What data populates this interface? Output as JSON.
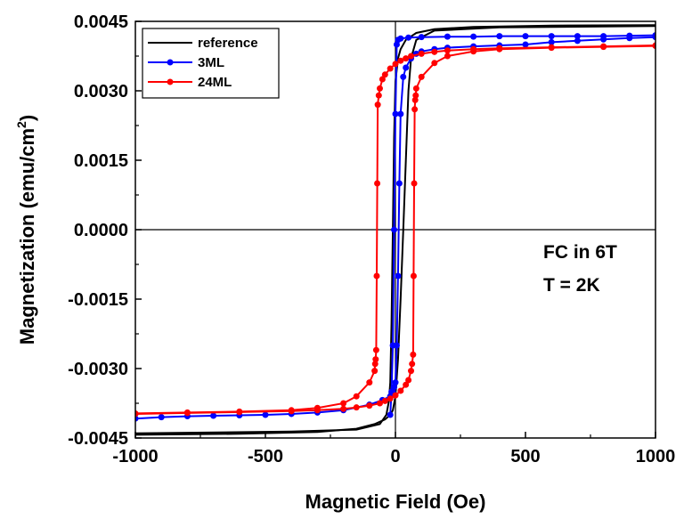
{
  "chart_data": {
    "type": "line",
    "xlabel": "Magnetic Field (Oe)",
    "ylabel_main": "Magnetization (emu/cm",
    "ylabel_sup": "2",
    "ylabel_end": ")",
    "xlim": [
      -1000,
      1000
    ],
    "ylim": [
      -0.0045,
      0.0045
    ],
    "xticks": [
      -1000,
      -500,
      0,
      500,
      1000
    ],
    "xtick_labels": [
      "-1000",
      "-500",
      "0",
      "500",
      "1000"
    ],
    "yticks": [
      -0.0045,
      -0.003,
      -0.0015,
      0.0,
      0.0015,
      0.003,
      0.0045
    ],
    "ytick_labels": [
      "-0.0045",
      "-0.0030",
      "-0.0015",
      "0.0000",
      "0.0015",
      "0.0030",
      "0.0045"
    ],
    "legend_position": "top-left",
    "annotations": [
      "FC in 6T",
      "T = 2K"
    ],
    "series": [
      {
        "name": "reference",
        "color": "#000000",
        "marker": "none",
        "upper_branch": {
          "x": [
            1000,
            600,
            300,
            150,
            80,
            40,
            20,
            10,
            0,
            -5,
            -10,
            -15,
            -20,
            -25,
            -35,
            -60,
            -150,
            -400,
            -1000
          ],
          "y": [
            0.00442,
            0.00441,
            0.00438,
            0.00433,
            0.00425,
            0.0041,
            0.0039,
            0.0037,
            0.0032,
            0.002,
            0.0,
            -0.002,
            -0.0033,
            -0.0037,
            -0.004,
            -0.0042,
            -0.00432,
            -0.00436,
            -0.0044
          ]
        },
        "lower_branch": {
          "x": [
            -1000,
            -600,
            -300,
            -150,
            -80,
            -40,
            -20,
            -10,
            0,
            10,
            20,
            30,
            40,
            50,
            60,
            80,
            150,
            400,
            1000
          ],
          "y": [
            -0.00443,
            -0.00441,
            -0.00437,
            -0.0043,
            -0.0042,
            -0.0041,
            -0.004,
            -0.0039,
            -0.0036,
            -0.0028,
            -0.0015,
            0.0,
            0.0015,
            0.003,
            0.0037,
            0.0041,
            0.0043,
            0.00437,
            0.0044
          ]
        }
      },
      {
        "name": "3ML",
        "color": "#0000ff",
        "marker": "circle",
        "upper_branch": {
          "x": [
            1000,
            900,
            800,
            700,
            600,
            500,
            400,
            300,
            200,
            100,
            50,
            20,
            10,
            5,
            0,
            -5,
            -10,
            -15,
            -20
          ],
          "y": [
            0.0042,
            0.00419,
            0.00418,
            0.00418,
            0.00418,
            0.00418,
            0.00418,
            0.00417,
            0.00417,
            0.00416,
            0.00415,
            0.00413,
            0.0041,
            0.004,
            0.0025,
            0.0,
            -0.0025,
            -0.0035,
            -0.004
          ]
        },
        "lower_branch": {
          "x": [
            -1000,
            -900,
            -800,
            -700,
            -600,
            -500,
            -400,
            -300,
            -200,
            -100,
            -50,
            -20,
            -10,
            -5,
            0,
            5,
            10,
            15,
            20,
            30,
            40,
            60,
            80,
            100,
            150,
            200,
            300,
            400,
            500,
            600,
            700,
            800,
            900,
            1000
          ],
          "y": [
            -0.00408,
            -0.00405,
            -0.00403,
            -0.00402,
            -0.00401,
            -0.004,
            -0.00398,
            -0.00395,
            -0.0039,
            -0.00378,
            -0.00368,
            -0.0036,
            -0.0035,
            -0.0034,
            -0.0033,
            -0.0025,
            -0.001,
            0.001,
            0.0025,
            0.0033,
            0.0035,
            0.0037,
            0.0038,
            0.00385,
            0.0039,
            0.00393,
            0.00396,
            0.00398,
            0.004,
            0.00405,
            0.00408,
            0.00411,
            0.00414,
            0.00416
          ]
        }
      },
      {
        "name": "24ML",
        "color": "#ff0000",
        "marker": "circle",
        "upper_branch": {
          "x": [
            1000,
            800,
            600,
            400,
            300,
            200,
            150,
            100,
            60,
            40,
            20,
            0,
            -20,
            -40,
            -50,
            -60,
            -64,
            -68,
            -70,
            -72,
            -74,
            -76,
            -78,
            -80,
            -100,
            -150,
            -200,
            -300,
            -400,
            -600,
            -800,
            -1000
          ],
          "y": [
            0.00398,
            0.00396,
            0.00394,
            0.00392,
            0.0039,
            0.00387,
            0.00384,
            0.0038,
            0.00375,
            0.0037,
            0.00365,
            0.00358,
            0.00348,
            0.00335,
            0.00325,
            0.00305,
            0.0029,
            0.0027,
            0.001,
            -0.001,
            -0.0026,
            -0.0028,
            -0.0029,
            -0.00305,
            -0.0033,
            -0.0036,
            -0.00375,
            -0.00385,
            -0.0039,
            -0.00393,
            -0.00395,
            -0.00397
          ]
        },
        "lower_branch": {
          "x": [
            -1000,
            -800,
            -600,
            -400,
            -300,
            -200,
            -150,
            -100,
            -60,
            -40,
            -20,
            0,
            20,
            40,
            50,
            60,
            64,
            68,
            70,
            72,
            74,
            76,
            78,
            80,
            100,
            150,
            200,
            300,
            400,
            600,
            800,
            1000
          ],
          "y": [
            -0.00398,
            -0.00396,
            -0.00394,
            -0.00392,
            -0.0039,
            -0.00387,
            -0.00384,
            -0.0038,
            -0.00375,
            -0.0037,
            -0.00365,
            -0.00358,
            -0.00348,
            -0.00335,
            -0.00325,
            -0.00305,
            -0.0029,
            -0.0027,
            -0.001,
            0.001,
            0.0026,
            0.0028,
            0.0029,
            0.00305,
            0.0033,
            0.0036,
            0.00375,
            0.00385,
            0.0039,
            0.00393,
            0.00395,
            0.00397
          ]
        }
      }
    ]
  }
}
